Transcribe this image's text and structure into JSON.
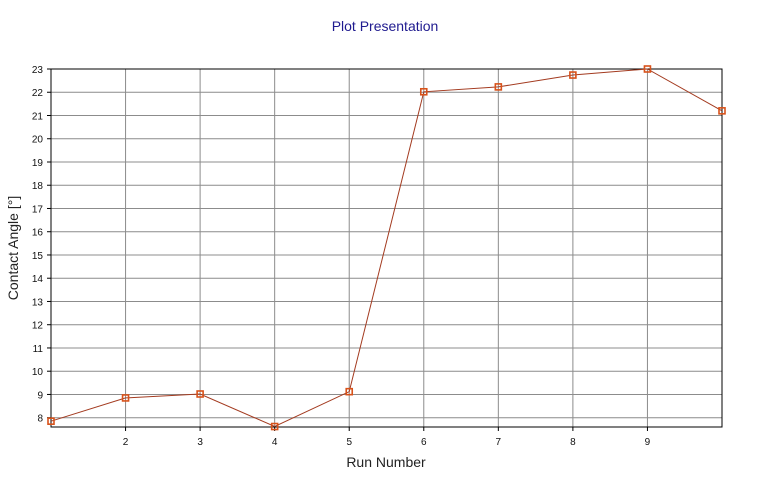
{
  "chart_data": {
    "type": "line",
    "title": "Plot Presentation",
    "xlabel": "Run Number",
    "ylabel": "Contact Angle [°]",
    "xlim": [
      1,
      10
    ],
    "ylim": [
      7.6,
      23
    ],
    "x_ticks": [
      2,
      3,
      4,
      5,
      6,
      7,
      8,
      9
    ],
    "y_ticks": [
      8,
      9,
      10,
      11,
      12,
      13,
      14,
      15,
      16,
      17,
      18,
      19,
      20,
      21,
      22,
      23
    ],
    "grid": true,
    "series": [
      {
        "x": [
          1,
          2,
          3,
          4,
          5,
          6,
          7,
          8,
          9,
          10
        ],
        "values": [
          7.85,
          8.85,
          9.02,
          7.62,
          9.12,
          22.02,
          22.23,
          22.74,
          23.0,
          21.2
        ]
      }
    ],
    "colors": {
      "line": "#a33a1f",
      "marker": "#d8521a",
      "title": "#1f1a8f"
    },
    "marker": "square"
  }
}
